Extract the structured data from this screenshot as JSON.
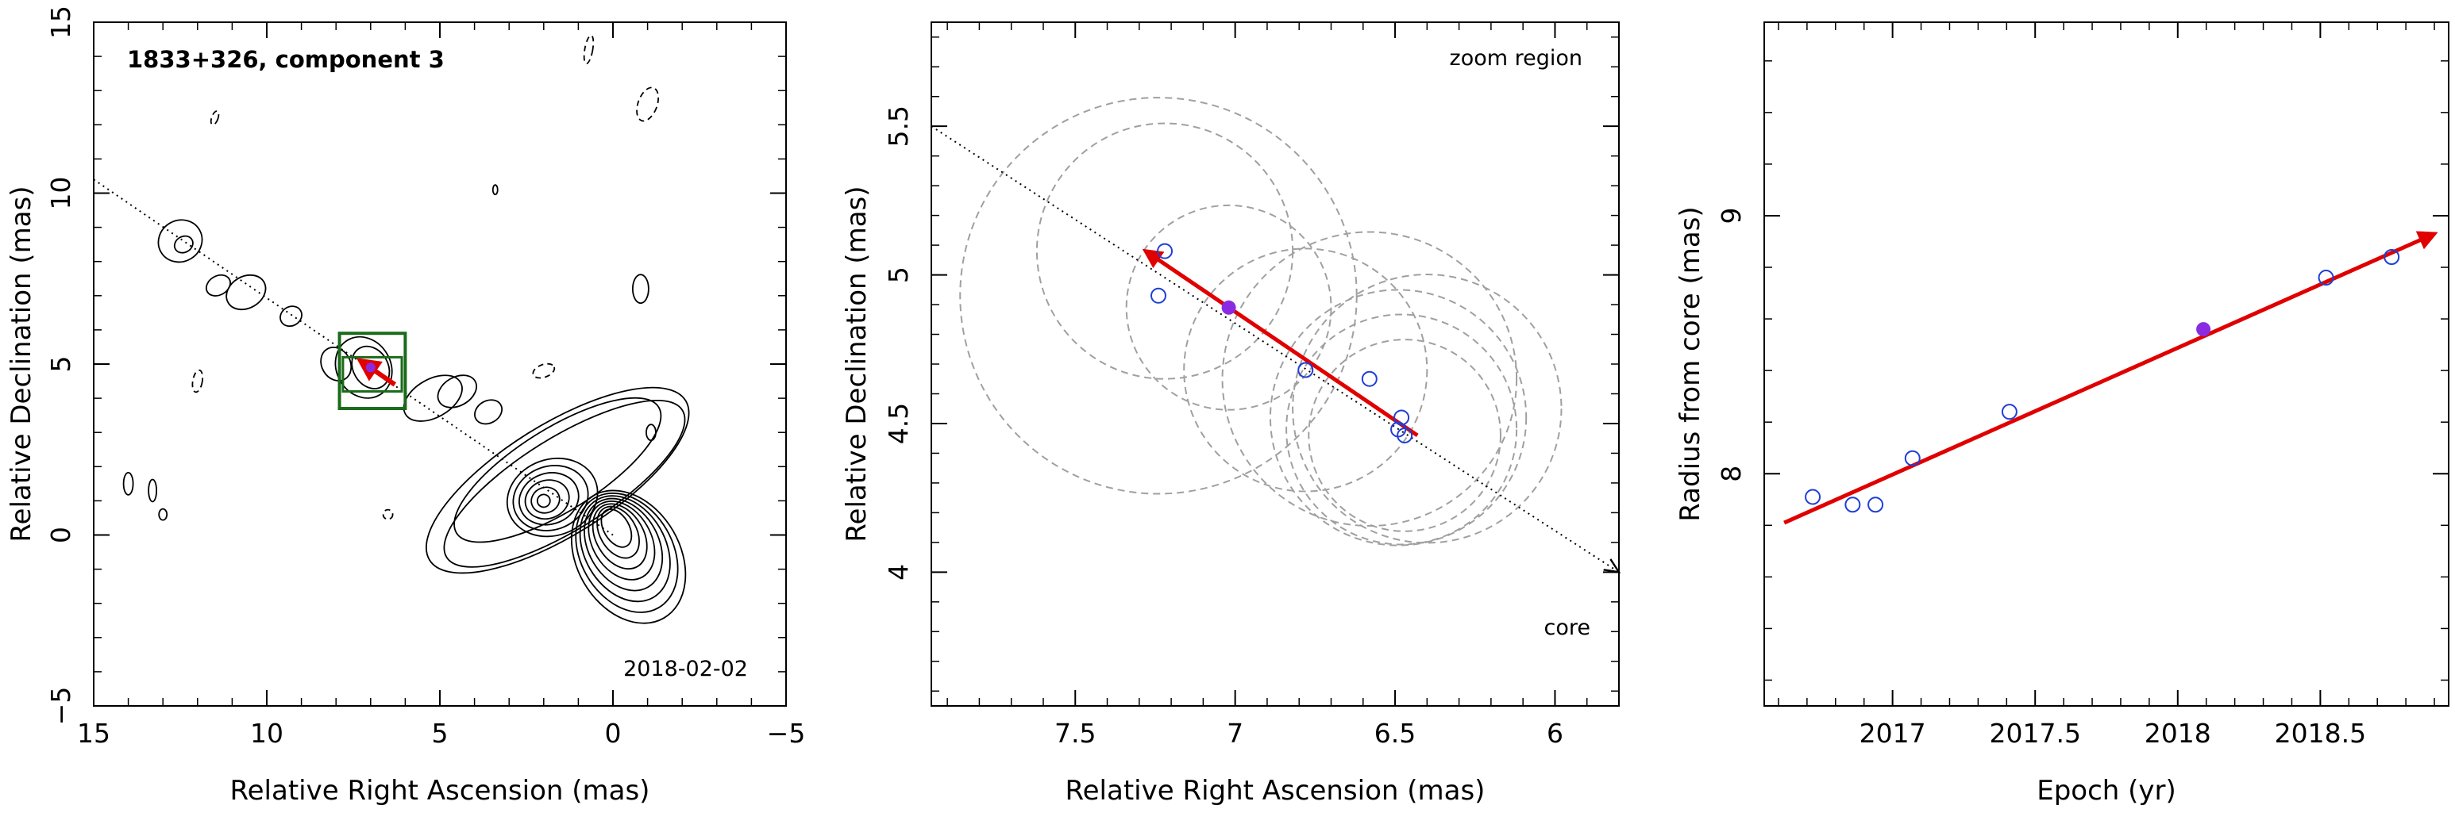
{
  "chart_data": [
    {
      "type": "contour",
      "title": "1833+326, component 3",
      "epoch_label": "2018-02-02",
      "xlabel": "Relative Right Ascension (mas)",
      "ylabel": "Relative Declination (mas)",
      "xlim": [
        15,
        -5
      ],
      "ylim": [
        -5,
        15
      ],
      "xticks": [
        15,
        10,
        5,
        0,
        -5
      ],
      "yticks": [
        -5,
        0,
        5,
        10,
        15
      ],
      "xtick_labels": [
        "15",
        "10",
        "5",
        "0",
        "−5"
      ],
      "ytick_labels": [
        "−5",
        "0",
        "5",
        "10",
        "15"
      ],
      "jet_axis": [
        [
          15,
          10.4
        ],
        [
          0,
          0
        ]
      ],
      "zoom_box": {
        "x": [
          6,
          7.9
        ],
        "y": [
          3.7,
          5.9
        ]
      },
      "inner_box": {
        "x": [
          6.1,
          7.8
        ],
        "y": [
          4.2,
          5.2
        ]
      },
      "motion_vector": {
        "from": [
          6.3,
          4.4
        ],
        "to": [
          7.3,
          5.1
        ]
      },
      "component_position": [
        7.0,
        4.9
      ],
      "colors": {
        "contour": "#000000",
        "box": "#1a6b1a",
        "vector": "#e00000",
        "component": "#8a2be2",
        "axis_line": "#000000"
      }
    },
    {
      "type": "scatter",
      "title": "zoom region",
      "core_label": "core",
      "xlabel": "Relative Right Ascension (mas)",
      "ylabel": "Relative Declination (mas)",
      "xlim": [
        7.95,
        5.8
      ],
      "ylim": [
        3.55,
        5.85
      ],
      "xticks": [
        7.5,
        7,
        6.5,
        6
      ],
      "yticks": [
        4,
        4.5,
        5,
        5.5
      ],
      "xtick_labels": [
        "7.5",
        "7",
        "6.5",
        "6"
      ],
      "ytick_labels": [
        "4",
        "4.5",
        "5",
        "5.5"
      ],
      "series": [
        {
          "x": [
            7.22,
            7.24,
            6.78,
            6.58,
            6.48,
            6.49,
            6.47
          ],
          "y": [
            5.08,
            4.93,
            4.68,
            4.65,
            4.52,
            4.48,
            4.46
          ]
        },
        {
          "x": [
            7.02
          ],
          "y": [
            4.89
          ]
        }
      ],
      "uncertainty_circles": [
        {
          "x": 7.24,
          "y": 4.93,
          "r": 0.62
        },
        {
          "x": 7.22,
          "y": 5.08,
          "r": 0.4
        },
        {
          "x": 7.02,
          "y": 4.89,
          "r": 0.32
        },
        {
          "x": 6.78,
          "y": 4.68,
          "r": 0.38
        },
        {
          "x": 6.58,
          "y": 4.65,
          "r": 0.46
        },
        {
          "x": 6.49,
          "y": 4.52,
          "r": 0.4
        },
        {
          "x": 6.48,
          "y": 4.48,
          "r": 0.36
        },
        {
          "x": 6.47,
          "y": 4.46,
          "r": 0.3
        },
        {
          "x": 6.4,
          "y": 4.55,
          "r": 0.42
        }
      ],
      "jet_axis": [
        [
          7.95,
          5.5
        ],
        [
          5.8,
          4.0
        ]
      ],
      "motion_vector": {
        "from": [
          6.43,
          4.46
        ],
        "to": [
          7.28,
          5.08
        ]
      },
      "colors": {
        "open_marker": "#1f3fd6",
        "filled_marker": "#8a2be2",
        "vector": "#e00000",
        "circle": "#a0a0a0",
        "axis_line": "#000000"
      }
    },
    {
      "type": "scatter",
      "xlabel": "Epoch (yr)",
      "ylabel": "Radius from core (mas)",
      "xlim": [
        16.55,
        18.95
      ],
      "ylim": [
        7.1,
        9.75
      ],
      "xticks": [
        17,
        17.5,
        18,
        18.5
      ],
      "yticks": [
        8,
        9
      ],
      "xtick_labels": [
        "2017",
        "2017.5",
        "2018",
        "2018.5"
      ],
      "ytick_labels": [
        "8",
        "9"
      ],
      "series": [
        {
          "x": [
            16.72,
            16.86,
            16.94,
            17.07,
            17.41,
            18.52,
            18.75
          ],
          "y": [
            7.91,
            7.88,
            7.88,
            8.06,
            8.24,
            8.76,
            8.84
          ]
        },
        {
          "x": [
            18.09
          ],
          "y": [
            8.56
          ]
        }
      ],
      "fit_line": {
        "from": [
          16.62,
          7.81
        ],
        "to": [
          18.9,
          8.93
        ]
      },
      "colors": {
        "open_marker": "#1f3fd6",
        "filled_marker": "#8a2be2",
        "fit": "#e00000"
      }
    }
  ]
}
